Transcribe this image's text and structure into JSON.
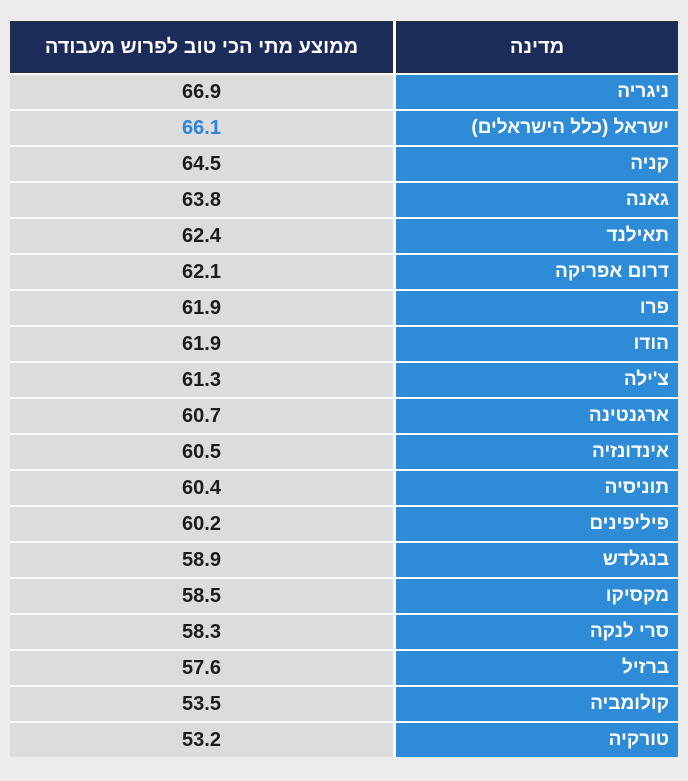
{
  "page": {
    "background_color": "#ececec"
  },
  "table": {
    "direction": "rtl",
    "colors": {
      "header_bg": "#1b2c5a",
      "header_text": "#ffffff",
      "country_bg": "#2e8bd8",
      "country_text": "#ffffff",
      "value_bg": "#dcdcdc",
      "value_text": "#1c1c1c",
      "highlight_value_text": "#2e86d8",
      "separator": "#fafafa"
    }
  },
  "chart_data": {
    "type": "table",
    "title": "",
    "columns": [
      {
        "key": "country",
        "label": "מדינה"
      },
      {
        "key": "value",
        "label": "ממוצע מתי הכי טוב לפרוש מעבודה"
      }
    ],
    "rows": [
      {
        "country": "ניגריה",
        "value": "66.9",
        "highlight": false
      },
      {
        "country": "ישראל (כלל הישראלים)",
        "value": "66.1",
        "highlight": true
      },
      {
        "country": "קניה",
        "value": "64.5",
        "highlight": false
      },
      {
        "country": "גאנה",
        "value": "63.8",
        "highlight": false
      },
      {
        "country": "תאילנד",
        "value": "62.4",
        "highlight": false
      },
      {
        "country": "דרום אפריקה",
        "value": "62.1",
        "highlight": false
      },
      {
        "country": "פרו",
        "value": "61.9",
        "highlight": false
      },
      {
        "country": "הודו",
        "value": "61.9",
        "highlight": false
      },
      {
        "country": "צ'ילה",
        "value": "61.3",
        "highlight": false
      },
      {
        "country": "ארגנטינה",
        "value": "60.7",
        "highlight": false
      },
      {
        "country": "אינדונזיה",
        "value": "60.5",
        "highlight": false
      },
      {
        "country": "תוניסיה",
        "value": "60.4",
        "highlight": false
      },
      {
        "country": "פיליפינים",
        "value": "60.2",
        "highlight": false
      },
      {
        "country": "בנגלדש",
        "value": "58.9",
        "highlight": false
      },
      {
        "country": "מקסיקו",
        "value": "58.5",
        "highlight": false
      },
      {
        "country": "סרי לנקה",
        "value": "58.3",
        "highlight": false
      },
      {
        "country": "ברזיל",
        "value": "57.6",
        "highlight": false
      },
      {
        "country": "קולומביה",
        "value": "53.5",
        "highlight": false
      },
      {
        "country": "טורקיה",
        "value": "53.2",
        "highlight": false
      }
    ]
  }
}
